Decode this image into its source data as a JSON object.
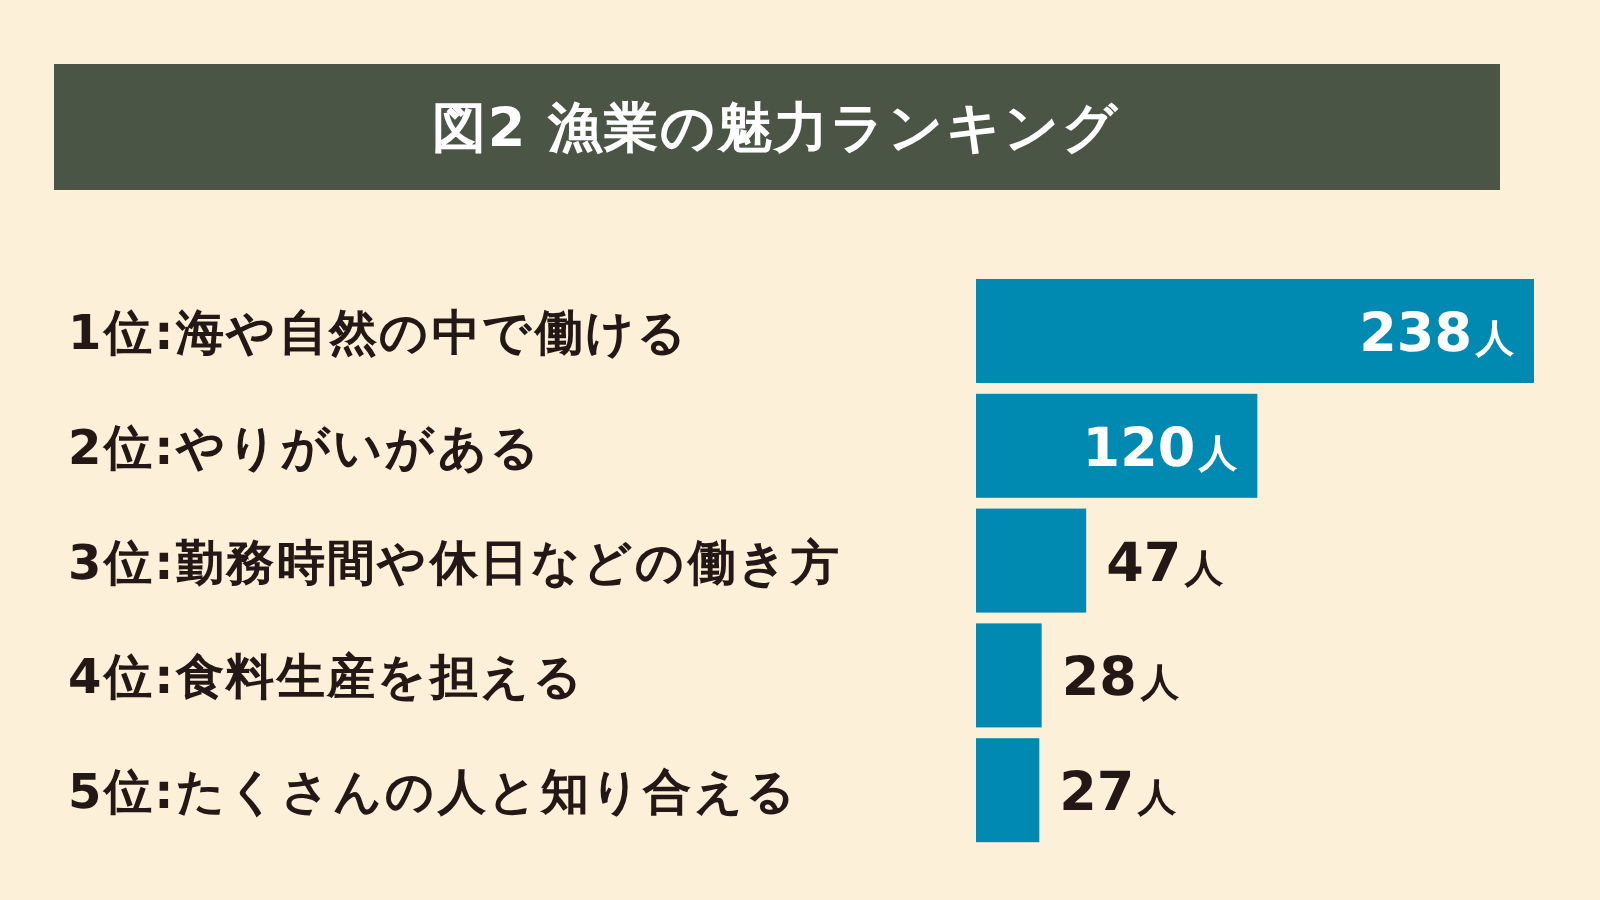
{
  "chart_data": {
    "type": "bar",
    "orientation": "horizontal",
    "title": "図2 漁業の魅力ランキング",
    "categories": [
      "1位:海や自然の中で働ける",
      "2位:やりがいがある",
      "3位:勤務時間や休日などの働き方",
      "4位:食料生産を担える",
      "5位:たくさんの人と知り合える"
    ],
    "values": [
      238,
      120,
      47,
      28,
      27
    ],
    "value_labels": [
      "238人",
      "120人",
      "47人",
      "28人",
      "27人"
    ],
    "color": "#0089b1"
  }
}
